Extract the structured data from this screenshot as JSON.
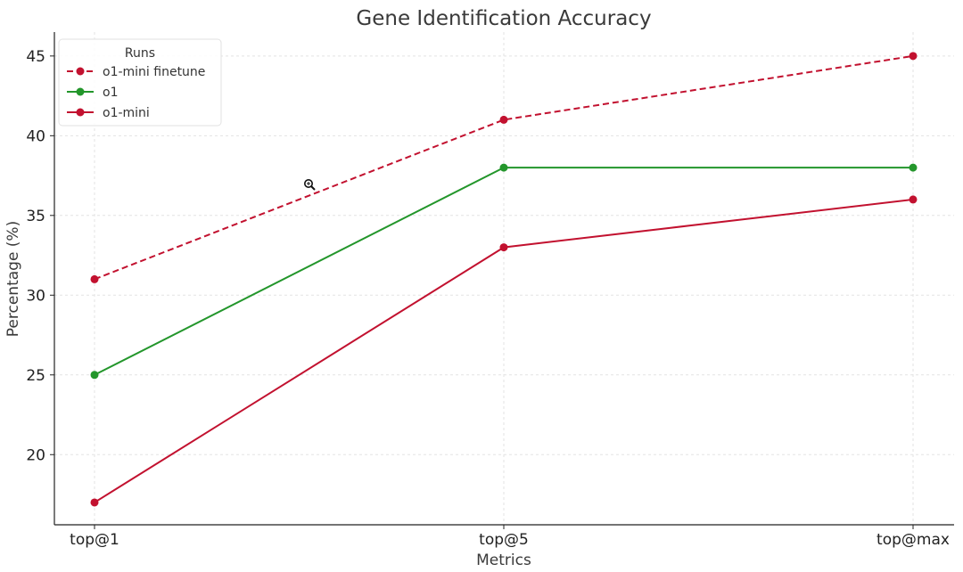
{
  "chart_data": {
    "type": "line",
    "title": "Gene Identification Accuracy",
    "xlabel": "Metrics",
    "ylabel": "Percentage (%)",
    "categories": [
      "top@1",
      "top@5",
      "top@max"
    ],
    "ylim": [
      15.6,
      46.5
    ],
    "yticks": [
      20,
      25,
      30,
      35,
      40,
      45
    ],
    "grid": true,
    "legend": {
      "title": "Runs",
      "placement": "top-left"
    },
    "series": [
      {
        "name": "o1-mini finetune",
        "values": [
          31,
          41,
          45
        ],
        "color": "#c2112f",
        "linestyle": "dashed"
      },
      {
        "name": "o1",
        "values": [
          25,
          38,
          38
        ],
        "color": "#23962b",
        "linestyle": "solid"
      },
      {
        "name": "o1-mini",
        "values": [
          17,
          33,
          36
        ],
        "color": "#c2112f",
        "linestyle": "solid"
      }
    ]
  },
  "cursor_icon": "zoom-in-icon"
}
